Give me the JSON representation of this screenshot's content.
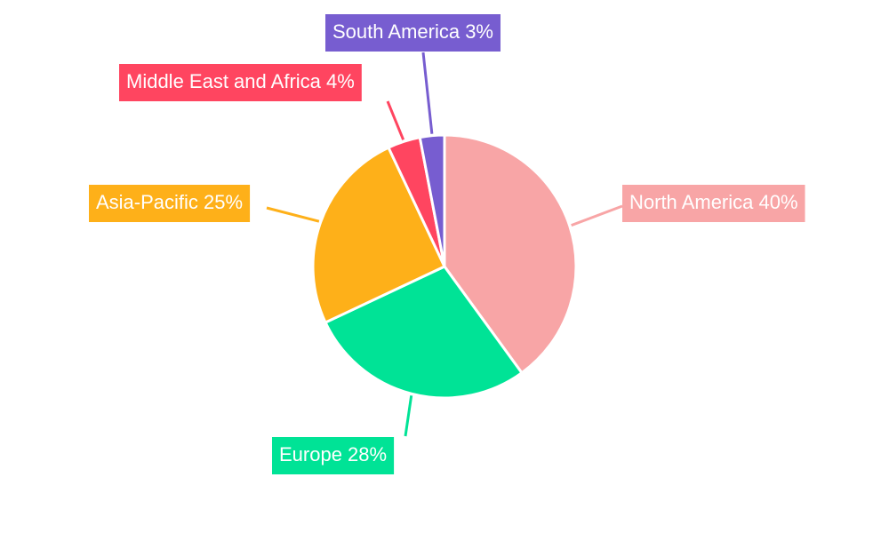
{
  "chart_data": {
    "type": "pie",
    "values": [
      40,
      28,
      25,
      4,
      3
    ],
    "value_labels": [
      "North America 40%",
      "Europe 28%",
      "Asia-Pacific 25%",
      "Middle East and Africa 4%",
      "South America 3%"
    ],
    "colors": [
      "#f8a5a6",
      "#00e396",
      "#feb019",
      "#ff4560",
      "#775dd0"
    ]
  }
}
